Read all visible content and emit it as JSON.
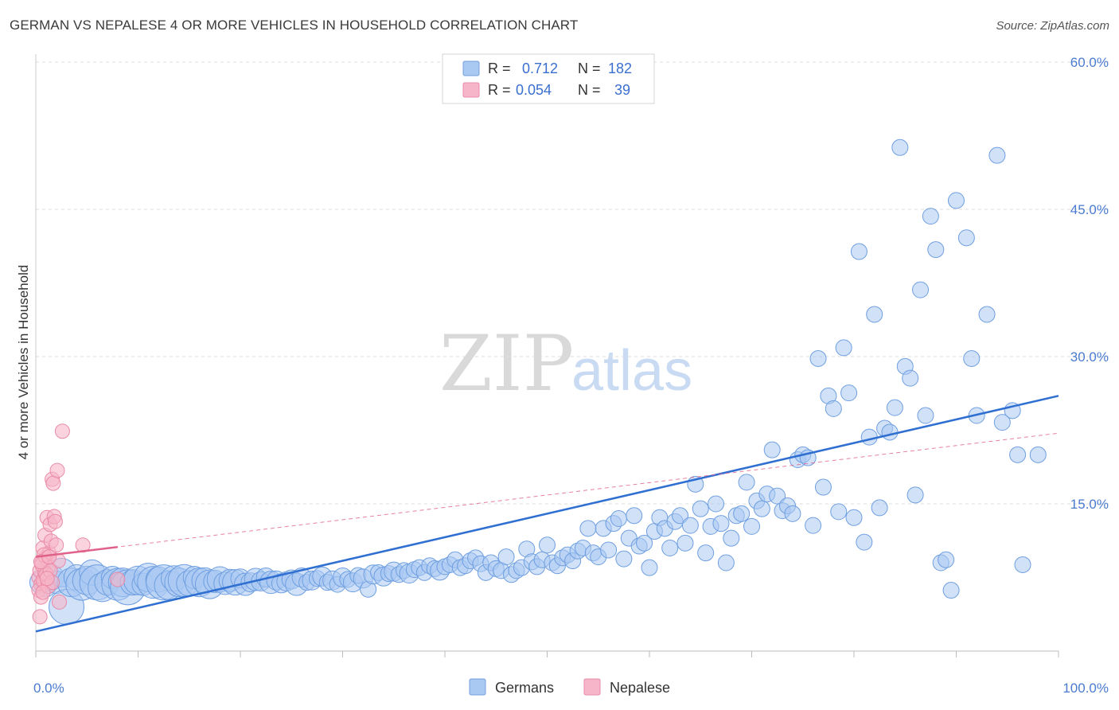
{
  "title": "GERMAN VS NEPALESE 4 OR MORE VEHICLES IN HOUSEHOLD CORRELATION CHART",
  "source": "Source: ZipAtlas.com",
  "watermark": {
    "zip": "ZIP",
    "atlas": "atlas"
  },
  "colors": {
    "german_fill": "#a9c8f2",
    "german_stroke": "#6f9fe0",
    "german_line": "#2f6fd1",
    "nepalese_fill": "#f6b5c8",
    "nepalese_stroke": "#e98aa7",
    "nepalese_line": "#e0618a",
    "grid": "#dcdcdc"
  },
  "legend": {
    "rows": [
      {
        "r_label": "R =",
        "r_value": "0.712",
        "n_label": "N =",
        "n_value": "182"
      },
      {
        "r_label": "R =",
        "r_value": "0.054",
        "n_label": "N =",
        "n_value": "39"
      }
    ]
  },
  "bottom_legend": [
    "Germans",
    "Nepalese"
  ],
  "chart_data": {
    "type": "scatter",
    "ylabel": "4 or more Vehicles in Household",
    "xlabel": "",
    "xlim": [
      0,
      100
    ],
    "ylim": [
      0,
      60
    ],
    "x_tick_labels": [
      "0.0%",
      "100.0%"
    ],
    "y_ticks": [
      15,
      30,
      45,
      60
    ],
    "y_tick_labels": [
      "15.0%",
      "30.0%",
      "45.0%",
      "60.0%"
    ],
    "grid": true,
    "legend_position": "top-center",
    "series": [
      {
        "name": "Germans",
        "R": 0.712,
        "N": 182,
        "trend": {
          "x0": 0,
          "y0": 2.0,
          "x1": 100,
          "y1": 26.0
        },
        "points": [
          [
            0.5,
            7.0,
            14
          ],
          [
            1.0,
            6.5,
            12
          ],
          [
            1.5,
            7.5,
            16
          ],
          [
            2.0,
            7.0,
            14
          ],
          [
            2.5,
            8.0,
            18
          ],
          [
            3.0,
            4.5,
            22
          ],
          [
            3.5,
            7.0,
            18
          ],
          [
            4.0,
            7.5,
            16
          ],
          [
            4.5,
            6.8,
            20
          ],
          [
            5.0,
            7.2,
            18
          ],
          [
            5.5,
            8.0,
            16
          ],
          [
            6.0,
            7.0,
            22
          ],
          [
            6.5,
            6.5,
            18
          ],
          [
            7.0,
            7.0,
            16
          ],
          [
            7.5,
            7.5,
            14
          ],
          [
            8.0,
            6.8,
            20
          ],
          [
            8.5,
            7.0,
            18
          ],
          [
            9.0,
            6.5,
            22
          ],
          [
            9.5,
            7.0,
            16
          ],
          [
            10.0,
            7.2,
            18
          ],
          [
            10.5,
            6.8,
            14
          ],
          [
            11.0,
            7.5,
            18
          ],
          [
            11.5,
            7.0,
            20
          ],
          [
            12.0,
            7.3,
            16
          ],
          [
            12.5,
            7.0,
            22
          ],
          [
            13.0,
            6.7,
            18
          ],
          [
            13.5,
            7.4,
            16
          ],
          [
            14.0,
            7.0,
            18
          ],
          [
            14.5,
            7.2,
            20
          ],
          [
            15.0,
            6.9,
            16
          ],
          [
            15.5,
            7.5,
            14
          ],
          [
            16.0,
            7.0,
            18
          ],
          [
            16.5,
            7.2,
            16
          ],
          [
            17.0,
            6.8,
            18
          ],
          [
            17.5,
            7.1,
            14
          ],
          [
            18.0,
            7.3,
            16
          ],
          [
            18.5,
            6.9,
            14
          ],
          [
            19.0,
            7.2,
            14
          ],
          [
            19.5,
            7.0,
            16
          ],
          [
            20.0,
            7.4,
            12
          ],
          [
            20.5,
            6.8,
            14
          ],
          [
            21.0,
            7.0,
            12
          ],
          [
            21.5,
            7.3,
            14
          ],
          [
            22.0,
            7.1,
            12
          ],
          [
            22.5,
            7.5,
            12
          ],
          [
            23.0,
            7.0,
            14
          ],
          [
            23.5,
            7.2,
            12
          ],
          [
            24.0,
            6.9,
            12
          ],
          [
            24.5,
            7.1,
            12
          ],
          [
            25.0,
            7.3,
            12
          ],
          [
            25.5,
            6.8,
            14
          ],
          [
            26.0,
            7.5,
            12
          ],
          [
            26.5,
            7.0,
            10
          ],
          [
            27.0,
            7.2,
            12
          ],
          [
            27.5,
            7.4,
            10
          ],
          [
            28.0,
            7.6,
            12
          ],
          [
            28.5,
            7.0,
            10
          ],
          [
            29.0,
            7.2,
            12
          ],
          [
            29.5,
            6.8,
            10
          ],
          [
            30.0,
            7.5,
            12
          ],
          [
            30.5,
            7.3,
            10
          ],
          [
            31.0,
            7.0,
            12
          ],
          [
            31.5,
            7.7,
            10
          ],
          [
            32.0,
            7.4,
            12
          ],
          [
            32.5,
            6.3,
            10
          ],
          [
            33.0,
            7.8,
            12
          ],
          [
            33.5,
            8.0,
            10
          ],
          [
            34.0,
            7.6,
            12
          ],
          [
            34.5,
            7.9,
            10
          ],
          [
            35.0,
            8.1,
            12
          ],
          [
            35.5,
            7.8,
            10
          ],
          [
            36.0,
            8.2,
            10
          ],
          [
            36.5,
            7.9,
            12
          ],
          [
            37.0,
            8.3,
            10
          ],
          [
            37.5,
            8.5,
            10
          ],
          [
            38.0,
            8.0,
            10
          ],
          [
            38.5,
            8.7,
            10
          ],
          [
            39.0,
            8.4,
            10
          ],
          [
            39.5,
            8.2,
            12
          ],
          [
            40.0,
            8.6,
            10
          ],
          [
            40.5,
            8.8,
            10
          ],
          [
            41.0,
            9.3,
            10
          ],
          [
            41.5,
            8.5,
            10
          ],
          [
            42.0,
            8.7,
            10
          ],
          [
            42.5,
            9.2,
            10
          ],
          [
            43.0,
            9.5,
            10
          ],
          [
            43.5,
            8.9,
            10
          ],
          [
            44.0,
            8.0,
            10
          ],
          [
            44.5,
            9.0,
            10
          ],
          [
            45.0,
            8.4,
            10
          ],
          [
            45.5,
            8.2,
            10
          ],
          [
            46.0,
            9.6,
            10
          ],
          [
            46.5,
            7.8,
            10
          ],
          [
            47.0,
            8.2,
            10
          ],
          [
            47.5,
            8.5,
            10
          ],
          [
            48.0,
            10.4,
            10
          ],
          [
            48.5,
            9.1,
            10
          ],
          [
            49.0,
            8.6,
            10
          ],
          [
            49.5,
            9.3,
            10
          ],
          [
            50.0,
            10.8,
            10
          ],
          [
            50.5,
            9.0,
            10
          ],
          [
            51.0,
            8.7,
            10
          ],
          [
            51.5,
            9.5,
            10
          ],
          [
            52.0,
            9.8,
            10
          ],
          [
            52.5,
            9.2,
            10
          ],
          [
            53.0,
            10.2,
            10
          ],
          [
            53.5,
            10.5,
            10
          ],
          [
            54.0,
            12.5,
            10
          ],
          [
            54.5,
            10.0,
            10
          ],
          [
            55.0,
            9.6,
            10
          ],
          [
            55.5,
            12.5,
            10
          ],
          [
            56.0,
            10.3,
            10
          ],
          [
            56.5,
            13.0,
            10
          ],
          [
            57.0,
            13.5,
            10
          ],
          [
            57.5,
            9.4,
            10
          ],
          [
            58.0,
            11.5,
            10
          ],
          [
            58.5,
            13.8,
            10
          ],
          [
            59.0,
            10.7,
            10
          ],
          [
            59.5,
            11.0,
            10
          ],
          [
            60.0,
            8.5,
            10
          ],
          [
            60.5,
            12.2,
            10
          ],
          [
            61.0,
            13.6,
            10
          ],
          [
            61.5,
            12.5,
            10
          ],
          [
            62.0,
            10.5,
            10
          ],
          [
            62.5,
            13.2,
            10
          ],
          [
            63.0,
            13.8,
            10
          ],
          [
            63.5,
            11.0,
            10
          ],
          [
            64.0,
            12.8,
            10
          ],
          [
            64.5,
            17.0,
            10
          ],
          [
            65.0,
            14.5,
            10
          ],
          [
            65.5,
            10.0,
            10
          ],
          [
            66.0,
            12.7,
            10
          ],
          [
            66.5,
            15.0,
            10
          ],
          [
            67.0,
            13.0,
            10
          ],
          [
            67.5,
            9.0,
            10
          ],
          [
            68.0,
            11.5,
            10
          ],
          [
            68.5,
            13.8,
            10
          ],
          [
            69.0,
            14.0,
            10
          ],
          [
            69.5,
            17.2,
            10
          ],
          [
            70.0,
            12.7,
            10
          ],
          [
            70.5,
            15.3,
            10
          ],
          [
            71.0,
            14.5,
            10
          ],
          [
            71.5,
            16.0,
            10
          ],
          [
            72.0,
            20.5,
            10
          ],
          [
            72.5,
            15.8,
            10
          ],
          [
            73.0,
            14.3,
            10
          ],
          [
            73.5,
            14.8,
            10
          ],
          [
            74.0,
            14.0,
            10
          ],
          [
            74.5,
            19.5,
            10
          ],
          [
            75.0,
            20.0,
            10
          ],
          [
            75.5,
            19.7,
            10
          ],
          [
            76.0,
            12.8,
            10
          ],
          [
            76.5,
            29.8,
            10
          ],
          [
            77.0,
            16.7,
            10
          ],
          [
            77.5,
            26.0,
            10
          ],
          [
            78.0,
            24.7,
            10
          ],
          [
            78.5,
            14.2,
            10
          ],
          [
            79.0,
            30.9,
            10
          ],
          [
            79.5,
            26.3,
            10
          ],
          [
            80.0,
            13.6,
            10
          ],
          [
            80.5,
            40.7,
            10
          ],
          [
            81.0,
            11.1,
            10
          ],
          [
            81.5,
            21.8,
            10
          ],
          [
            82.0,
            34.3,
            10
          ],
          [
            82.5,
            14.6,
            10
          ],
          [
            83.0,
            22.7,
            10
          ],
          [
            83.5,
            22.3,
            10
          ],
          [
            84.0,
            24.8,
            10
          ],
          [
            84.5,
            51.3,
            10
          ],
          [
            85.0,
            29.0,
            10
          ],
          [
            85.5,
            27.8,
            10
          ],
          [
            86.0,
            15.9,
            10
          ],
          [
            86.5,
            36.8,
            10
          ],
          [
            87.0,
            24.0,
            10
          ],
          [
            87.5,
            44.3,
            10
          ],
          [
            88.0,
            40.9,
            10
          ],
          [
            88.5,
            9.0,
            10
          ],
          [
            89.0,
            9.3,
            10
          ],
          [
            89.5,
            6.2,
            10
          ],
          [
            90.0,
            45.9,
            10
          ],
          [
            91.0,
            42.1,
            10
          ],
          [
            91.5,
            29.8,
            10
          ],
          [
            92.0,
            24.0,
            10
          ],
          [
            93.0,
            34.3,
            10
          ],
          [
            94.0,
            50.5,
            10
          ],
          [
            94.5,
            23.3,
            10
          ],
          [
            95.5,
            24.5,
            10
          ],
          [
            96.0,
            20.0,
            10
          ],
          [
            96.5,
            8.8,
            10
          ],
          [
            98.0,
            20.0,
            10
          ]
        ]
      },
      {
        "name": "Nepalese",
        "R": 0.054,
        "N": 39,
        "trend": {
          "x0": 0,
          "y0": 9.6,
          "x1": 8,
          "y1": 10.6
        },
        "trend_ext": {
          "x0": 0,
          "y0": 9.6,
          "x1": 100,
          "y1": 22.2
        },
        "points": [
          [
            0.3,
            7.5,
            9
          ],
          [
            0.4,
            8.2,
            9
          ],
          [
            0.5,
            6.8,
            9
          ],
          [
            0.6,
            9.0,
            9
          ],
          [
            0.7,
            10.5,
            9
          ],
          [
            0.8,
            7.0,
            9
          ],
          [
            0.9,
            11.8,
            9
          ],
          [
            1.0,
            9.5,
            9
          ],
          [
            1.1,
            13.6,
            9
          ],
          [
            1.2,
            8.5,
            9
          ],
          [
            0.3,
            6.2,
            9
          ],
          [
            0.5,
            5.5,
            9
          ],
          [
            0.7,
            7.2,
            9
          ],
          [
            0.9,
            8.0,
            9
          ],
          [
            1.3,
            10.0,
            9
          ],
          [
            1.4,
            12.9,
            9
          ],
          [
            1.5,
            11.2,
            9
          ],
          [
            1.6,
            17.5,
            9
          ],
          [
            1.7,
            17.1,
            9
          ],
          [
            1.8,
            13.7,
            9
          ],
          [
            1.9,
            13.2,
            9
          ],
          [
            2.0,
            10.8,
            9
          ],
          [
            2.1,
            18.4,
            9
          ],
          [
            2.2,
            9.2,
            9
          ],
          [
            2.3,
            5.0,
            9
          ],
          [
            2.6,
            22.4,
            9
          ],
          [
            0.4,
            3.5,
            9
          ],
          [
            0.6,
            8.8,
            9
          ],
          [
            0.8,
            9.8,
            9
          ],
          [
            1.0,
            7.8,
            9
          ],
          [
            1.2,
            6.6,
            9
          ],
          [
            1.4,
            8.2,
            9
          ],
          [
            1.6,
            7.0,
            9
          ],
          [
            4.6,
            10.8,
            9
          ],
          [
            8.0,
            7.3,
            9
          ],
          [
            0.5,
            9.1,
            9
          ],
          [
            0.7,
            6.0,
            9
          ],
          [
            1.1,
            7.4,
            9
          ],
          [
            1.3,
            9.6,
            9
          ]
        ]
      }
    ]
  }
}
